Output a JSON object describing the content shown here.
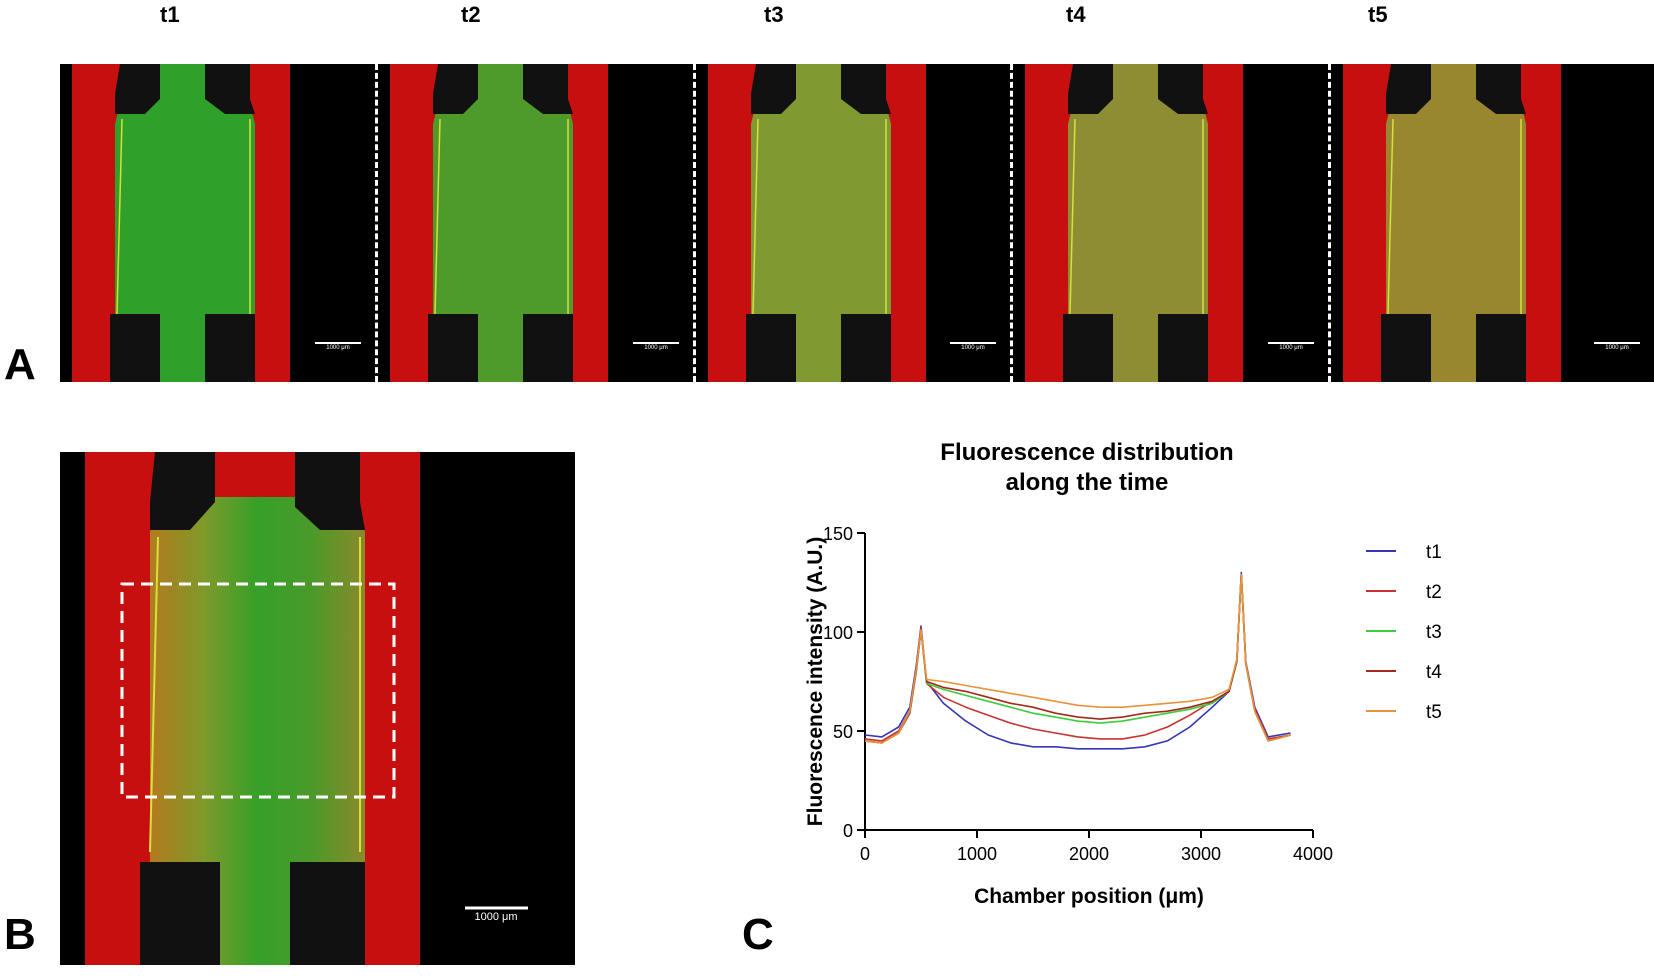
{
  "panels": {
    "a_letter": "A",
    "b_letter": "B",
    "c_letter": "C"
  },
  "timepoints": [
    "t1",
    "t2",
    "t3",
    "t4",
    "t5"
  ],
  "scale_bar_small": "1000 μm",
  "scale_bar_b": "1000 μm",
  "colors": {
    "red_channel": "#c80f0f",
    "green_t1": "#2fa12a",
    "green_t2": "#4e9a2a",
    "green_t3": "#7f9a30",
    "green_t4": "#8f8d33",
    "green_t5": "#98872f",
    "roi_box": "#ffffff"
  },
  "chart_data": {
    "type": "line",
    "title": "Fluorescence distribution along the time",
    "title_lines": [
      "Fluorescence distribution",
      "along the time"
    ],
    "xlabel": "Chamber position (μm)",
    "ylabel": "Fluorescence intensity (A.U.)",
    "xlim": [
      0,
      4000
    ],
    "ylim": [
      0,
      150
    ],
    "xticks": [
      0,
      1000,
      2000,
      3000,
      4000
    ],
    "yticks": [
      0,
      50,
      100,
      150
    ],
    "grid": false,
    "legend_position": "right",
    "series": [
      {
        "name": "t1",
        "color": "#3535b5",
        "x": [
          0,
          150,
          300,
          400,
          460,
          500,
          550,
          700,
          900,
          1100,
          1300,
          1500,
          1700,
          1900,
          2100,
          2300,
          2500,
          2700,
          2900,
          3100,
          3250,
          3320,
          3360,
          3400,
          3480,
          3600,
          3800
        ],
        "y": [
          48,
          47,
          52,
          62,
          84,
          103,
          75,
          64,
          55,
          48,
          44,
          42,
          42,
          41,
          41,
          41,
          42,
          45,
          52,
          62,
          70,
          85,
          130,
          85,
          62,
          47,
          49
        ]
      },
      {
        "name": "t2",
        "color": "#c83232",
        "x": [
          0,
          150,
          300,
          400,
          460,
          500,
          550,
          700,
          900,
          1100,
          1300,
          1500,
          1700,
          1900,
          2100,
          2300,
          2500,
          2700,
          2900,
          3100,
          3250,
          3320,
          3360,
          3400,
          3480,
          3600,
          3800
        ],
        "y": [
          46,
          45,
          50,
          60,
          82,
          102,
          74,
          67,
          62,
          58,
          54,
          51,
          49,
          47,
          46,
          46,
          48,
          52,
          58,
          65,
          70,
          86,
          129,
          84,
          61,
          46,
          48
        ]
      },
      {
        "name": "t3",
        "color": "#3ccc3c",
        "x": [
          0,
          150,
          300,
          400,
          460,
          500,
          550,
          700,
          900,
          1100,
          1300,
          1500,
          1700,
          1900,
          2100,
          2300,
          2500,
          2700,
          2900,
          3100,
          3250,
          3320,
          3360,
          3400,
          3480,
          3600,
          3800
        ],
        "y": [
          45,
          44,
          49,
          59,
          81,
          101,
          74,
          71,
          68,
          65,
          62,
          59,
          57,
          55,
          54,
          55,
          57,
          59,
          61,
          64,
          70,
          85,
          129,
          84,
          60,
          45,
          48
        ]
      },
      {
        "name": "t4",
        "color": "#a32a1a",
        "x": [
          0,
          150,
          300,
          400,
          460,
          500,
          550,
          700,
          900,
          1100,
          1300,
          1500,
          1700,
          1900,
          2100,
          2300,
          2500,
          2700,
          2900,
          3100,
          3250,
          3320,
          3360,
          3400,
          3480,
          3600,
          3800
        ],
        "y": [
          45,
          44,
          49,
          59,
          81,
          101,
          75,
          72,
          70,
          67,
          64,
          62,
          59,
          57,
          56,
          57,
          59,
          60,
          62,
          65,
          70,
          85,
          129,
          84,
          60,
          45,
          48
        ]
      },
      {
        "name": "t5",
        "color": "#e8923c",
        "x": [
          0,
          150,
          300,
          400,
          460,
          500,
          550,
          700,
          900,
          1100,
          1300,
          1500,
          1700,
          1900,
          2100,
          2300,
          2500,
          2700,
          2900,
          3100,
          3250,
          3320,
          3360,
          3400,
          3480,
          3600,
          3800
        ],
        "y": [
          45,
          44,
          49,
          60,
          82,
          101,
          76,
          75,
          73,
          71,
          69,
          67,
          65,
          63,
          62,
          62,
          63,
          64,
          65,
          67,
          71,
          86,
          129,
          84,
          60,
          45,
          48
        ]
      }
    ]
  }
}
